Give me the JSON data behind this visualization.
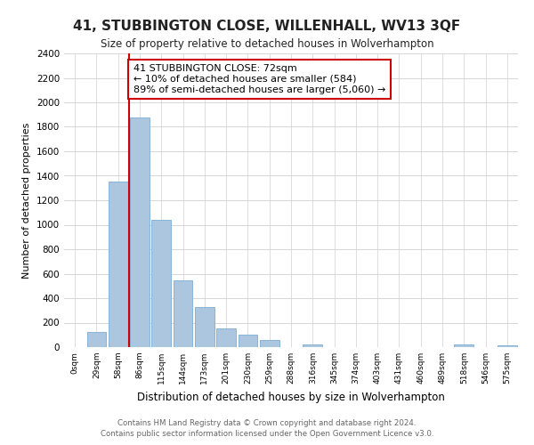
{
  "title": "41, STUBBINGTON CLOSE, WILLENHALL, WV13 3QF",
  "subtitle": "Size of property relative to detached houses in Wolverhampton",
  "xlabel": "Distribution of detached houses by size in Wolverhampton",
  "ylabel": "Number of detached properties",
  "bar_color": "#adc6e0",
  "bar_edge_color": "#7aadd4",
  "categories": [
    "0sqm",
    "29sqm",
    "58sqm",
    "86sqm",
    "115sqm",
    "144sqm",
    "173sqm",
    "201sqm",
    "230sqm",
    "259sqm",
    "288sqm",
    "316sqm",
    "345sqm",
    "374sqm",
    "403sqm",
    "431sqm",
    "460sqm",
    "489sqm",
    "518sqm",
    "546sqm",
    "575sqm"
  ],
  "values": [
    0,
    125,
    1350,
    1880,
    1040,
    545,
    330,
    155,
    105,
    60,
    0,
    25,
    0,
    0,
    0,
    0,
    0,
    0,
    20,
    0,
    15
  ],
  "ylim": [
    0,
    2400
  ],
  "yticks": [
    0,
    200,
    400,
    600,
    800,
    1000,
    1200,
    1400,
    1600,
    1800,
    2000,
    2200,
    2400
  ],
  "vline_color": "#cc0000",
  "annotation_title": "41 STUBBINGTON CLOSE: 72sqm",
  "annotation_line1": "← 10% of detached houses are smaller (584)",
  "annotation_line2": "89% of semi-detached houses are larger (5,060) →",
  "annotation_box_color": "#ffffff",
  "annotation_box_edge": "#cc0000",
  "footer1": "Contains HM Land Registry data © Crown copyright and database right 2024.",
  "footer2": "Contains public sector information licensed under the Open Government Licence v3.0.",
  "bg_color": "#ffffff",
  "grid_color": "#d0d0d0"
}
